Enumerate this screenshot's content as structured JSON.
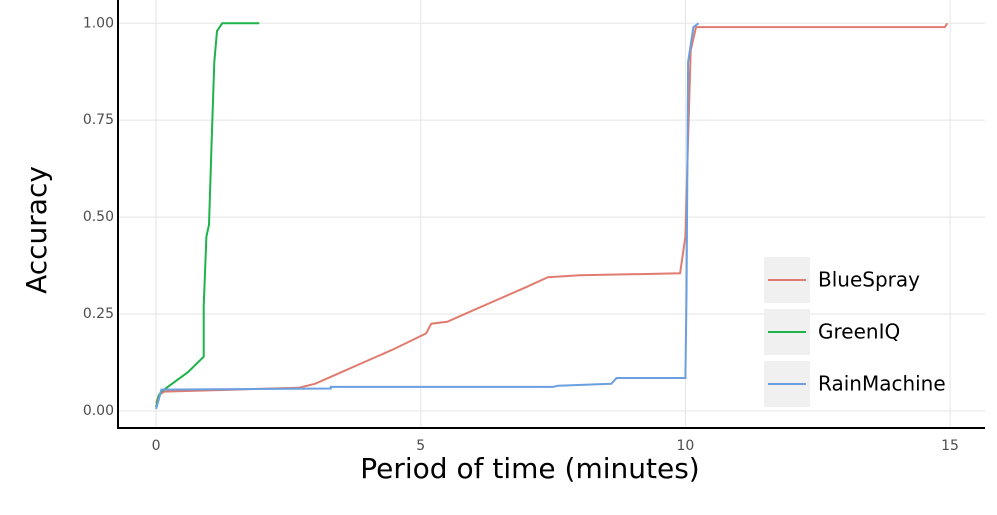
{
  "chart_data": {
    "type": "line",
    "x_label": "Period of time (minutes)",
    "y_label": "Accuracy",
    "xlim": [
      -0.72,
      15.66
    ],
    "ylim": [
      -0.044,
      1.06
    ],
    "xticks": [
      0,
      5,
      10,
      15
    ],
    "yticks": [
      {
        "value": 0,
        "label": "0.00"
      },
      0.25,
      {
        "value": 0.5,
        "label": "0.50"
      },
      0.75,
      {
        "value": 1,
        "label": "1.00"
      }
    ],
    "grid": true,
    "legend": "bottom-right",
    "series": [
      {
        "name": "BlueSpray",
        "color": "#e07b6f",
        "x": [
          0,
          0.05,
          0.15,
          1.5,
          2.7,
          3,
          3.5,
          4,
          4.5,
          5.1,
          5.2,
          5.5,
          6,
          6.5,
          7,
          7.4,
          8,
          9.9,
          10.0,
          10.05,
          10.1,
          10.2,
          14.9,
          14.95
        ],
        "values": [
          0.02,
          0.04,
          0.05,
          0.055,
          0.06,
          0.07,
          0.1,
          0.13,
          0.16,
          0.2,
          0.225,
          0.23,
          0.26,
          0.29,
          0.32,
          0.345,
          0.35,
          0.355,
          0.45,
          0.7,
          0.93,
          0.99,
          0.99,
          1.0
        ]
      },
      {
        "name": "GreenIQ",
        "color": "#1db34a",
        "x": [
          0,
          0.05,
          0.1,
          0.3,
          0.6,
          0.9,
          0.9,
          0.95,
          1.0,
          1.05,
          1.1,
          1.15,
          1.25,
          1.95
        ],
        "values": [
          0.01,
          0.04,
          0.05,
          0.07,
          0.1,
          0.14,
          0.27,
          0.45,
          0.48,
          0.7,
          0.9,
          0.98,
          1.0,
          1.0
        ]
      },
      {
        "name": "RainMachine",
        "color": "#6a9fe0",
        "x": [
          0,
          0.05,
          0.1,
          3.3,
          3.3,
          7.5,
          7.6,
          8.6,
          8.7,
          10,
          10.02,
          10.05,
          10.15,
          10.25
        ],
        "values": [
          0.005,
          0.03,
          0.055,
          0.058,
          0.062,
          0.062,
          0.065,
          0.07,
          0.085,
          0.085,
          0.3,
          0.9,
          0.99,
          1.0
        ]
      }
    ]
  }
}
